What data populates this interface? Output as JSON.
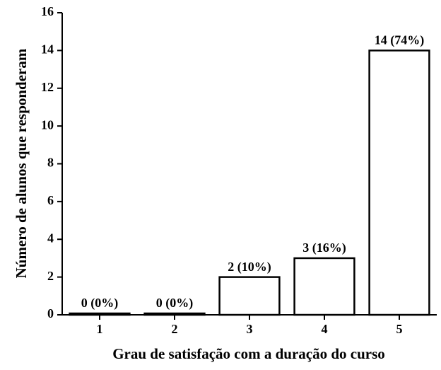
{
  "chart_data": {
    "type": "bar",
    "xlabel": "Grau de satisfação com a duração do curso",
    "ylabel": "Número de alunos que responderam",
    "categories": [
      "1",
      "2",
      "3",
      "4",
      "5"
    ],
    "values": [
      0,
      0,
      2,
      3,
      14
    ],
    "value_labels": [
      "0 (0%)",
      "0 (0%)",
      "2 (10%)",
      "3 (16%)",
      "14 (74%)"
    ],
    "color": "#ffffff",
    "ylim": [
      0,
      16
    ],
    "yticks": [
      0,
      2,
      4,
      6,
      8,
      10,
      12,
      14,
      16
    ],
    "grid": false
  }
}
